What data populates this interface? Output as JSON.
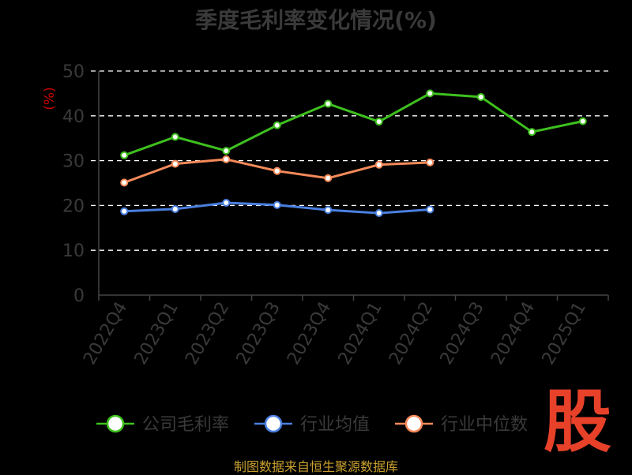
{
  "chart_data": {
    "type": "line",
    "title": "季度毛利率变化情况(%)",
    "ylabel": "(%)",
    "xlabel": "",
    "ylim": [
      0,
      50
    ],
    "yticks": [
      0,
      10,
      20,
      30,
      40,
      50
    ],
    "grid": true,
    "legend_position": "bottom",
    "categories": [
      "2022Q4",
      "2023Q1",
      "2023Q2",
      "2023Q3",
      "2023Q4",
      "2024Q1",
      "2024Q2",
      "2024Q3",
      "2024Q4",
      "2025Q1"
    ],
    "series": [
      {
        "name": "公司毛利率",
        "color": "#3ec01e",
        "values": [
          31.2,
          35.3,
          32.2,
          37.9,
          42.7,
          38.7,
          45.0,
          44.2,
          36.4,
          38.8
        ]
      },
      {
        "name": "行业均值",
        "color": "#4a7fe0",
        "values": [
          18.7,
          19.2,
          20.6,
          20.1,
          19.0,
          18.3,
          19.1,
          null,
          null,
          null
        ]
      },
      {
        "name": "行业中位数",
        "color": "#f58a5a",
        "values": [
          25.1,
          29.3,
          30.3,
          27.7,
          26.1,
          29.1,
          29.6,
          null,
          null,
          null
        ]
      }
    ]
  },
  "footer": {
    "source": "制图数据来自恒生聚源数据库",
    "watermark": "股"
  }
}
